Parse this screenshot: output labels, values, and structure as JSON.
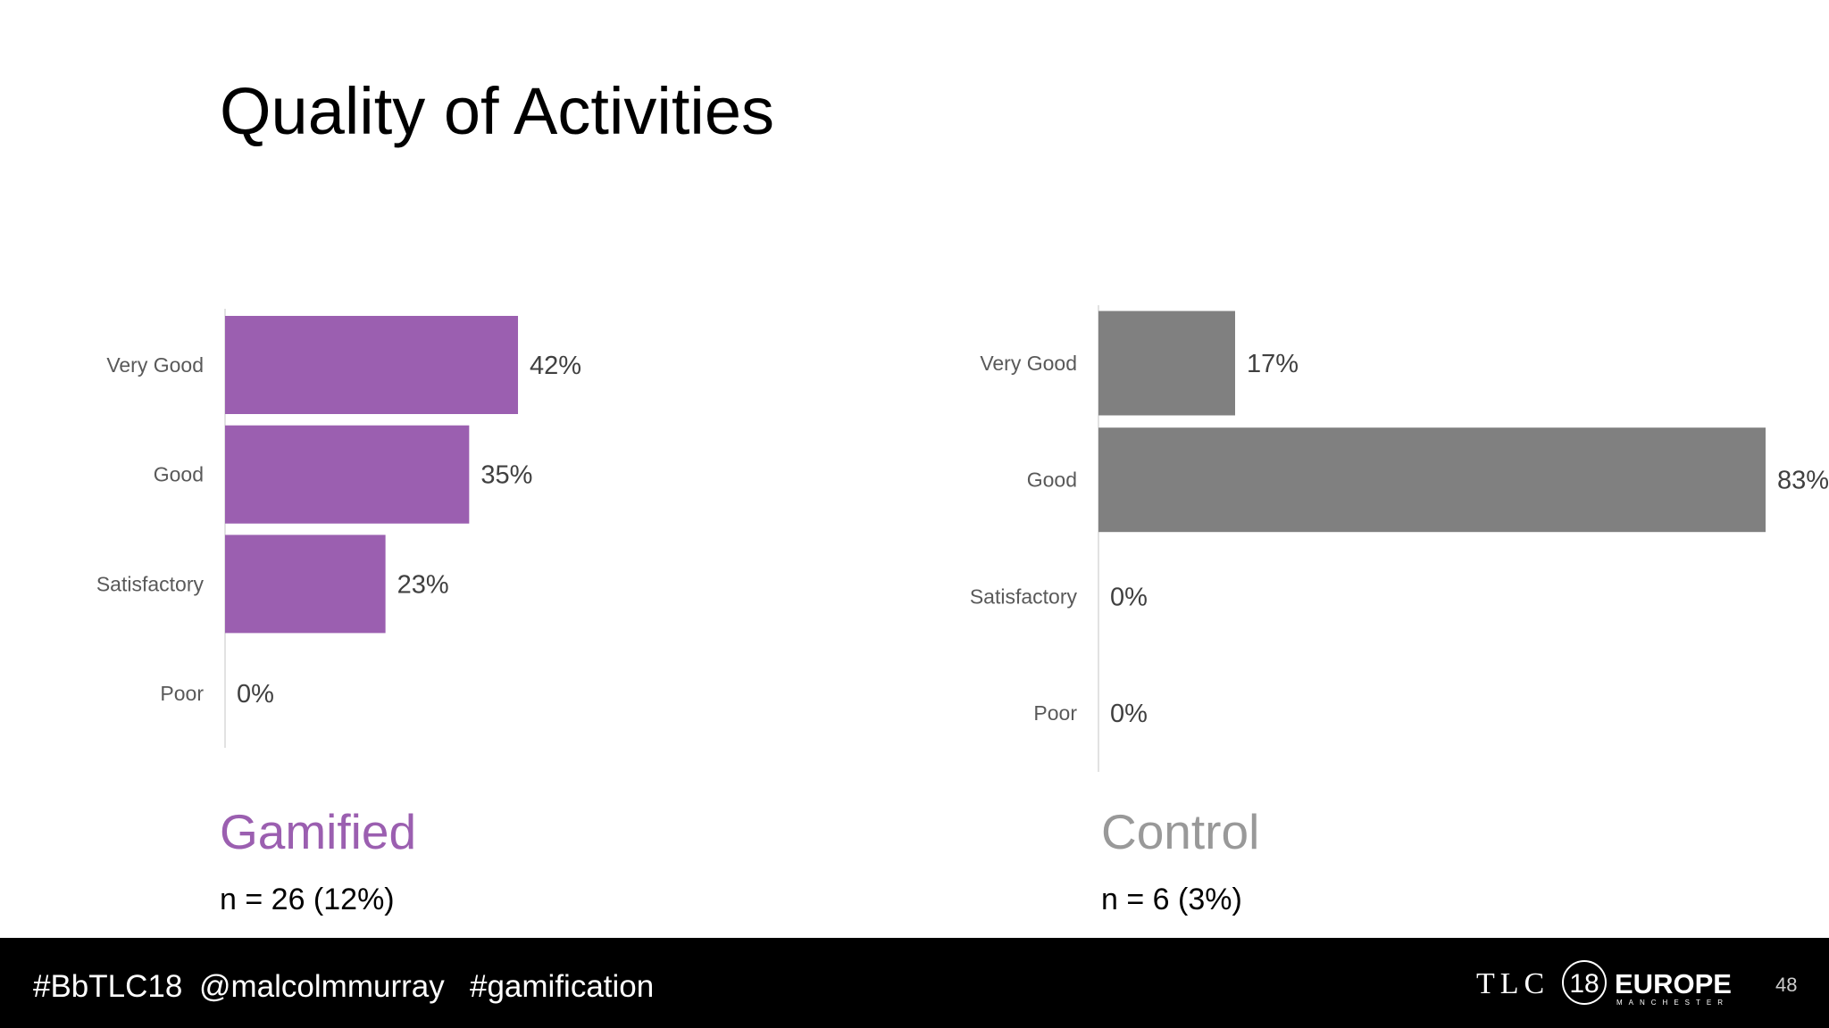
{
  "slide": {
    "title": "Quality of Activities",
    "footer": {
      "tags": [
        "#BbTLC18",
        "@malcolmmurray",
        "#gamification"
      ],
      "logo": {
        "brand": "TLC",
        "edition": "18",
        "region": "EUROPE",
        "city": "MANCHESTER"
      },
      "page_number": "48"
    }
  },
  "chart_data": [
    {
      "type": "bar",
      "orientation": "horizontal",
      "title": "Gamified",
      "subtitle": "n = 26 (12%)",
      "categories": [
        "Very Good",
        "Good",
        "Satisfactory",
        "Poor"
      ],
      "values": [
        42,
        35,
        23,
        0
      ],
      "value_labels": [
        "42%",
        "35%",
        "23%",
        "0%"
      ],
      "color": "#9b5fb0"
    },
    {
      "type": "bar",
      "orientation": "horizontal",
      "title": "Control",
      "subtitle": "n = 6 (3%)",
      "categories": [
        "Very Good",
        "Good",
        "Satisfactory",
        "Poor"
      ],
      "values": [
        17,
        83,
        0,
        0
      ],
      "value_labels": [
        "17%",
        "83%",
        "0%",
        "0%"
      ],
      "color": "#808080"
    }
  ]
}
